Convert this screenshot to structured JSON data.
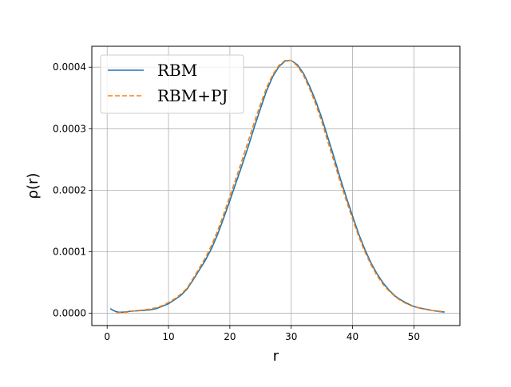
{
  "chart_data": {
    "type": "line",
    "title": "",
    "xlabel": "r",
    "ylabel": "ρ(r)",
    "xlim": [
      -2.5,
      57.5
    ],
    "ylim": [
      -2e-05,
      0.000434
    ],
    "xticks": [
      0,
      10,
      20,
      30,
      40,
      50
    ],
    "xtick_labels": [
      "0",
      "10",
      "20",
      "30",
      "40",
      "50"
    ],
    "yticks": [
      0,
      0.0001,
      0.0002,
      0.0003,
      0.0004
    ],
    "ytick_labels": [
      "0.0000",
      "0.0001",
      "0.0002",
      "0.0003",
      "0.0004"
    ],
    "grid": true,
    "legend_position": "top-left",
    "series": [
      {
        "name": "RBM",
        "color": "#1f77b4",
        "style": "solid",
        "x": [
          0.5,
          1,
          1.5,
          2,
          3,
          4,
          5,
          6,
          7,
          8,
          9,
          10,
          11,
          12,
          13,
          14,
          15,
          16,
          17,
          18,
          19,
          20,
          21,
          22,
          23,
          24,
          25,
          26,
          27,
          28,
          29,
          30,
          31,
          32,
          33,
          34,
          35,
          36,
          37,
          38,
          39,
          40,
          41,
          42,
          43,
          44,
          45,
          46,
          47,
          48,
          49,
          50,
          51,
          52,
          53,
          54,
          55
        ],
        "y": [
          7.5e-06,
          4.5e-06,
          2.5e-06,
          1.5e-06,
          2.2e-06,
          3.5e-06,
          4e-06,
          4.7e-06,
          5.5e-06,
          7.5e-06,
          1.15e-05,
          1.55e-05,
          2.2e-05,
          2.9e-05,
          3.9e-05,
          5.4e-05,
          7e-05,
          8.6e-05,
          0.000105,
          0.000128,
          0.000155,
          0.000183,
          0.000212,
          0.000241,
          0.000271,
          0.000303,
          0.000333,
          0.000362,
          0.000385,
          0.000401,
          0.00041,
          0.000411,
          0.000404,
          0.00039,
          0.000369,
          0.000345,
          0.000317,
          0.000285,
          0.000253,
          0.000219,
          0.000188,
          0.000158,
          0.000129,
          0.000104,
          8.2e-05,
          6.4e-05,
          4.9e-05,
          3.7e-05,
          2.75e-05,
          2.1e-05,
          1.55e-05,
          1.1e-05,
          8.5e-06,
          6.5e-06,
          4.5e-06,
          3e-06,
          2e-06
        ]
      },
      {
        "name": "RBM+PJ",
        "color": "#ff7f0e",
        "style": "dashed",
        "x": [
          1.5,
          2,
          3,
          4,
          5,
          6,
          7,
          8,
          9,
          10,
          11,
          12,
          13,
          14,
          15,
          16,
          17,
          18,
          19,
          20,
          21,
          22,
          23,
          24,
          25,
          26,
          27,
          28,
          29,
          30,
          31,
          32,
          33,
          34,
          35,
          36,
          37,
          38,
          39,
          40,
          41,
          42,
          43,
          44,
          45,
          46,
          47,
          48,
          49,
          50,
          51,
          52,
          53,
          54,
          55
        ],
        "y": [
          5e-07,
          8e-07,
          1.5e-06,
          3e-06,
          4.5e-06,
          5.5e-06,
          7e-06,
          9e-06,
          1.25e-05,
          1.75e-05,
          2.35e-05,
          3.1e-05,
          4.05e-05,
          5.65e-05,
          7.3e-05,
          9e-05,
          0.00011,
          0.000134,
          0.000161,
          0.00019,
          0.000219,
          0.000249,
          0.00028,
          0.000311,
          0.00034,
          0.000367,
          0.000388,
          0.000403,
          0.000411,
          0.000411,
          0.000402,
          0.000387,
          0.000365,
          0.00034,
          0.000311,
          0.000278,
          0.000246,
          0.000213,
          0.000183,
          0.000153,
          0.000125,
          0.0001,
          7.9e-05,
          6.1e-05,
          4.65e-05,
          3.55e-05,
          2.65e-05,
          1.95e-05,
          1.45e-05,
          1.05e-05,
          8e-06,
          6e-06,
          4.5e-06,
          3.5e-06,
          2.5e-06
        ]
      }
    ]
  }
}
